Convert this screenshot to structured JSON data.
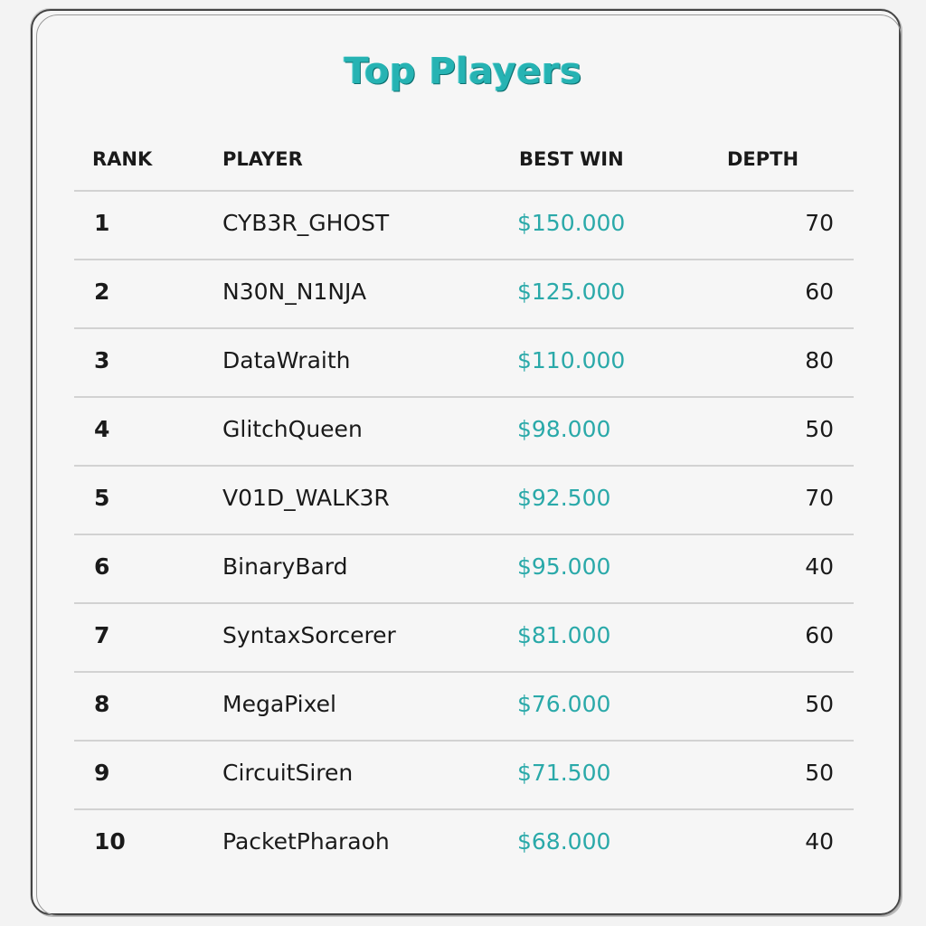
{
  "leaderboard": {
    "title": "Top Players",
    "columns": {
      "rank": "RANK",
      "player": "PLAYER",
      "best_win": "BEST WIN",
      "depth": "DEPTH"
    },
    "accent_color": "#26b3b3",
    "rows": [
      {
        "rank": "1",
        "player": "CYB3R_GHOST",
        "best_win": "$150.000",
        "depth": "70"
      },
      {
        "rank": "2",
        "player": "N30N_N1NJA",
        "best_win": "$125.000",
        "depth": "60"
      },
      {
        "rank": "3",
        "player": "DataWraith",
        "best_win": "$110.000",
        "depth": "80"
      },
      {
        "rank": "4",
        "player": "GlitchQueen",
        "best_win": "$98.000",
        "depth": "50"
      },
      {
        "rank": "5",
        "player": "V01D_WALK3R",
        "best_win": "$92.500",
        "depth": "70"
      },
      {
        "rank": "6",
        "player": "BinaryBard",
        "best_win": "$95.000",
        "depth": "40"
      },
      {
        "rank": "7",
        "player": "SyntaxSorcerer",
        "best_win": "$81.000",
        "depth": "60"
      },
      {
        "rank": "8",
        "player": "MegaPixel",
        "best_win": "$76.000",
        "depth": "50"
      },
      {
        "rank": "9",
        "player": "CircuitSiren",
        "best_win": "$71.500",
        "depth": "50"
      },
      {
        "rank": "10",
        "player": "PacketPharaoh",
        "best_win": "$68.000",
        "depth": "40"
      }
    ]
  }
}
